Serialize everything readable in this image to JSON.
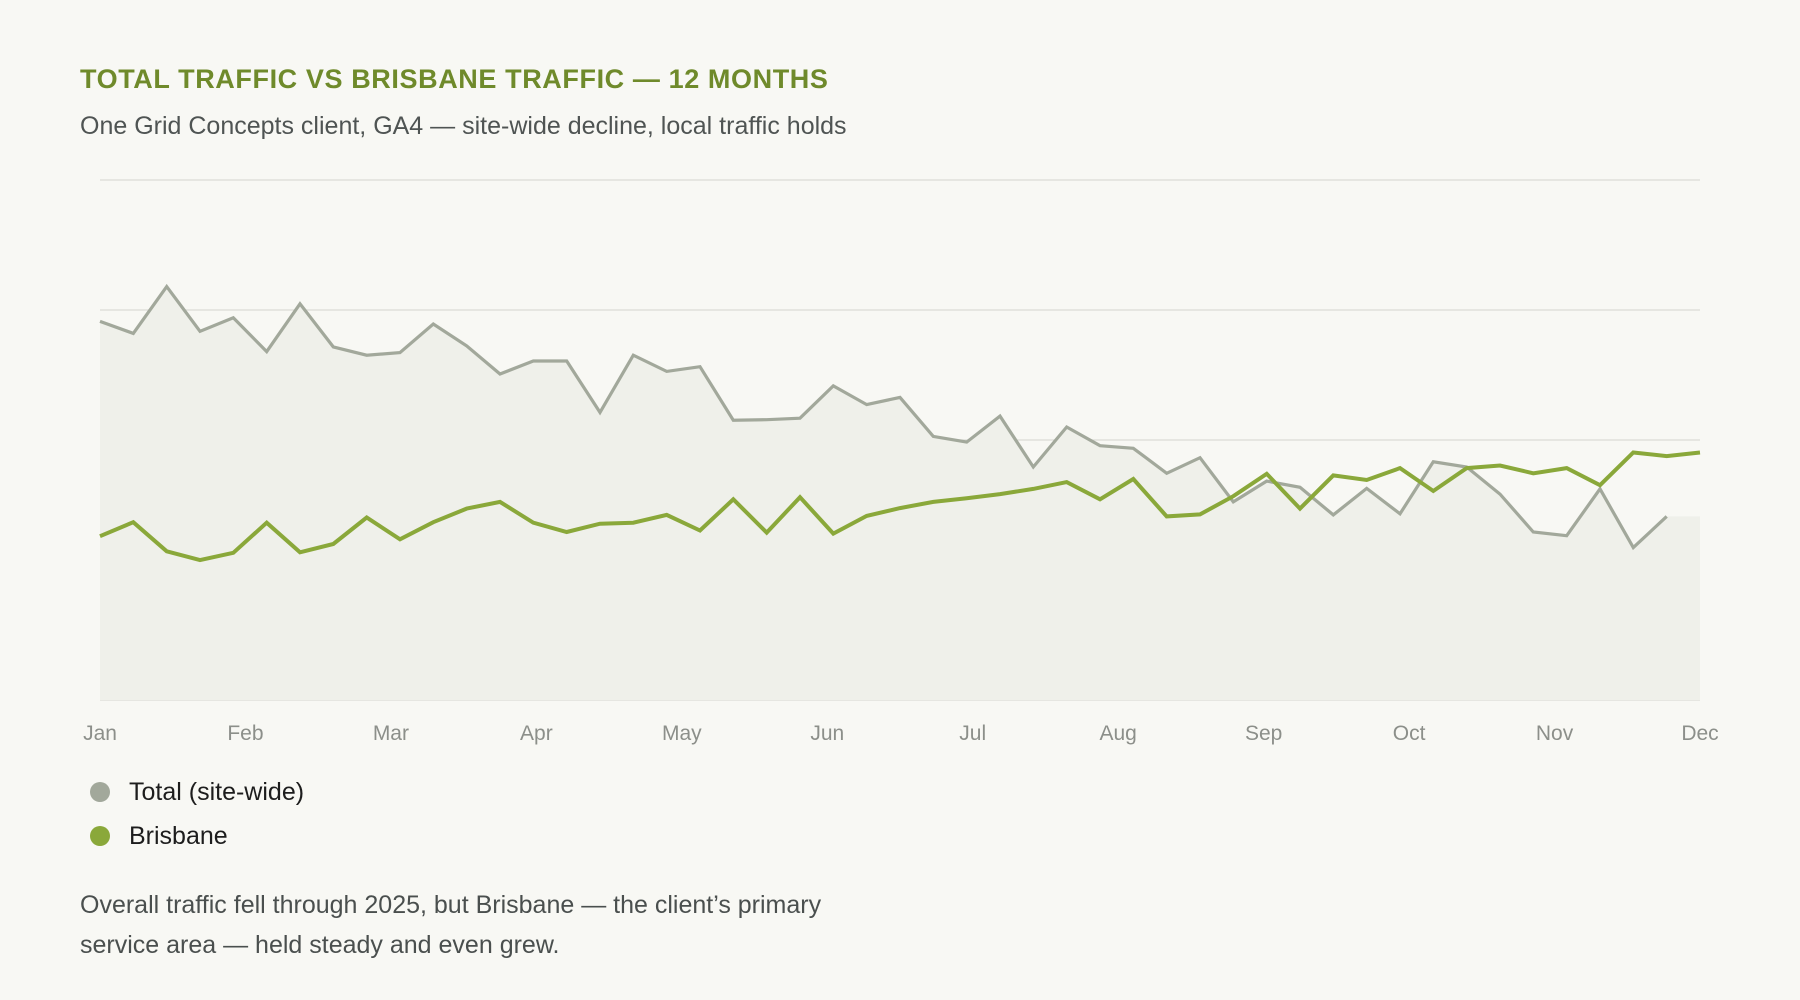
{
  "title": "TOTAL TRAFFIC VS BRISBANE TRAFFIC — 12 MONTHS",
  "subtitle": "One Grid Concepts client, GA4 — site-wide decline, local traffic holds",
  "caption": "Overall traffic fell through 2025, but Brisbane — the client’s primary service area — held steady and even grew.",
  "colors": {
    "background": "#f8f8f4",
    "title": "#6f8a2b",
    "total": "#a2a89b",
    "brisbane": "#8aa83a",
    "area": "#eff0ea",
    "grid": "#dadbd5",
    "tick": "#8c8f8a"
  },
  "chart_data": {
    "type": "line",
    "x_tick_labels": [
      "Jan",
      "Feb",
      "Mar",
      "Apr",
      "May",
      "Jun",
      "Jul",
      "Aug",
      "Sep",
      "Oct",
      "Nov",
      "Dec"
    ],
    "points_per_series": 49,
    "ylim": [
      0,
      100
    ],
    "grid": "horizontal",
    "y_tick_labels": "none",
    "legend_position": "bottom-left",
    "series": [
      {
        "name": "Total (site-wide)",
        "color": "#a2a89b",
        "fill": "area",
        "values": [
          72.8,
          70.5,
          79.5,
          70.9,
          73.5,
          67.0,
          76.2,
          67.9,
          66.3,
          66.8,
          72.3,
          68.1,
          62.7,
          65.2,
          65.2,
          55.3,
          66.3,
          63.2,
          64.1,
          53.8,
          53.9,
          54.2,
          60.4,
          56.8,
          58.2,
          50.7,
          49.6,
          54.6,
          44.8,
          52.5,
          48.9,
          48.4,
          43.6,
          46.6,
          38.1,
          42.1,
          40.9,
          35.6,
          40.7,
          35.8,
          45.8,
          44.8,
          39.6,
          32.3,
          31.6,
          40.6,
          29.3,
          35.3,
          null
        ]
      },
      {
        "name": "Brisbane",
        "color": "#8aa83a",
        "fill": "none",
        "values": [
          31.5,
          34.2,
          28.6,
          26.9,
          28.3,
          34.1,
          28.4,
          30.0,
          35.1,
          30.9,
          34.2,
          36.8,
          38.1,
          34.1,
          32.3,
          33.9,
          34.1,
          35.6,
          32.6,
          38.6,
          32.2,
          39.0,
          32.0,
          35.4,
          36.9,
          38.1,
          38.8,
          39.6,
          40.6,
          41.9,
          38.6,
          42.5,
          35.3,
          35.7,
          39.2,
          43.5,
          36.8,
          43.2,
          42.3,
          44.6,
          40.2,
          44.6,
          45.1,
          43.6,
          44.6,
          41.3,
          47.6,
          46.9,
          47.6
        ]
      }
    ]
  }
}
